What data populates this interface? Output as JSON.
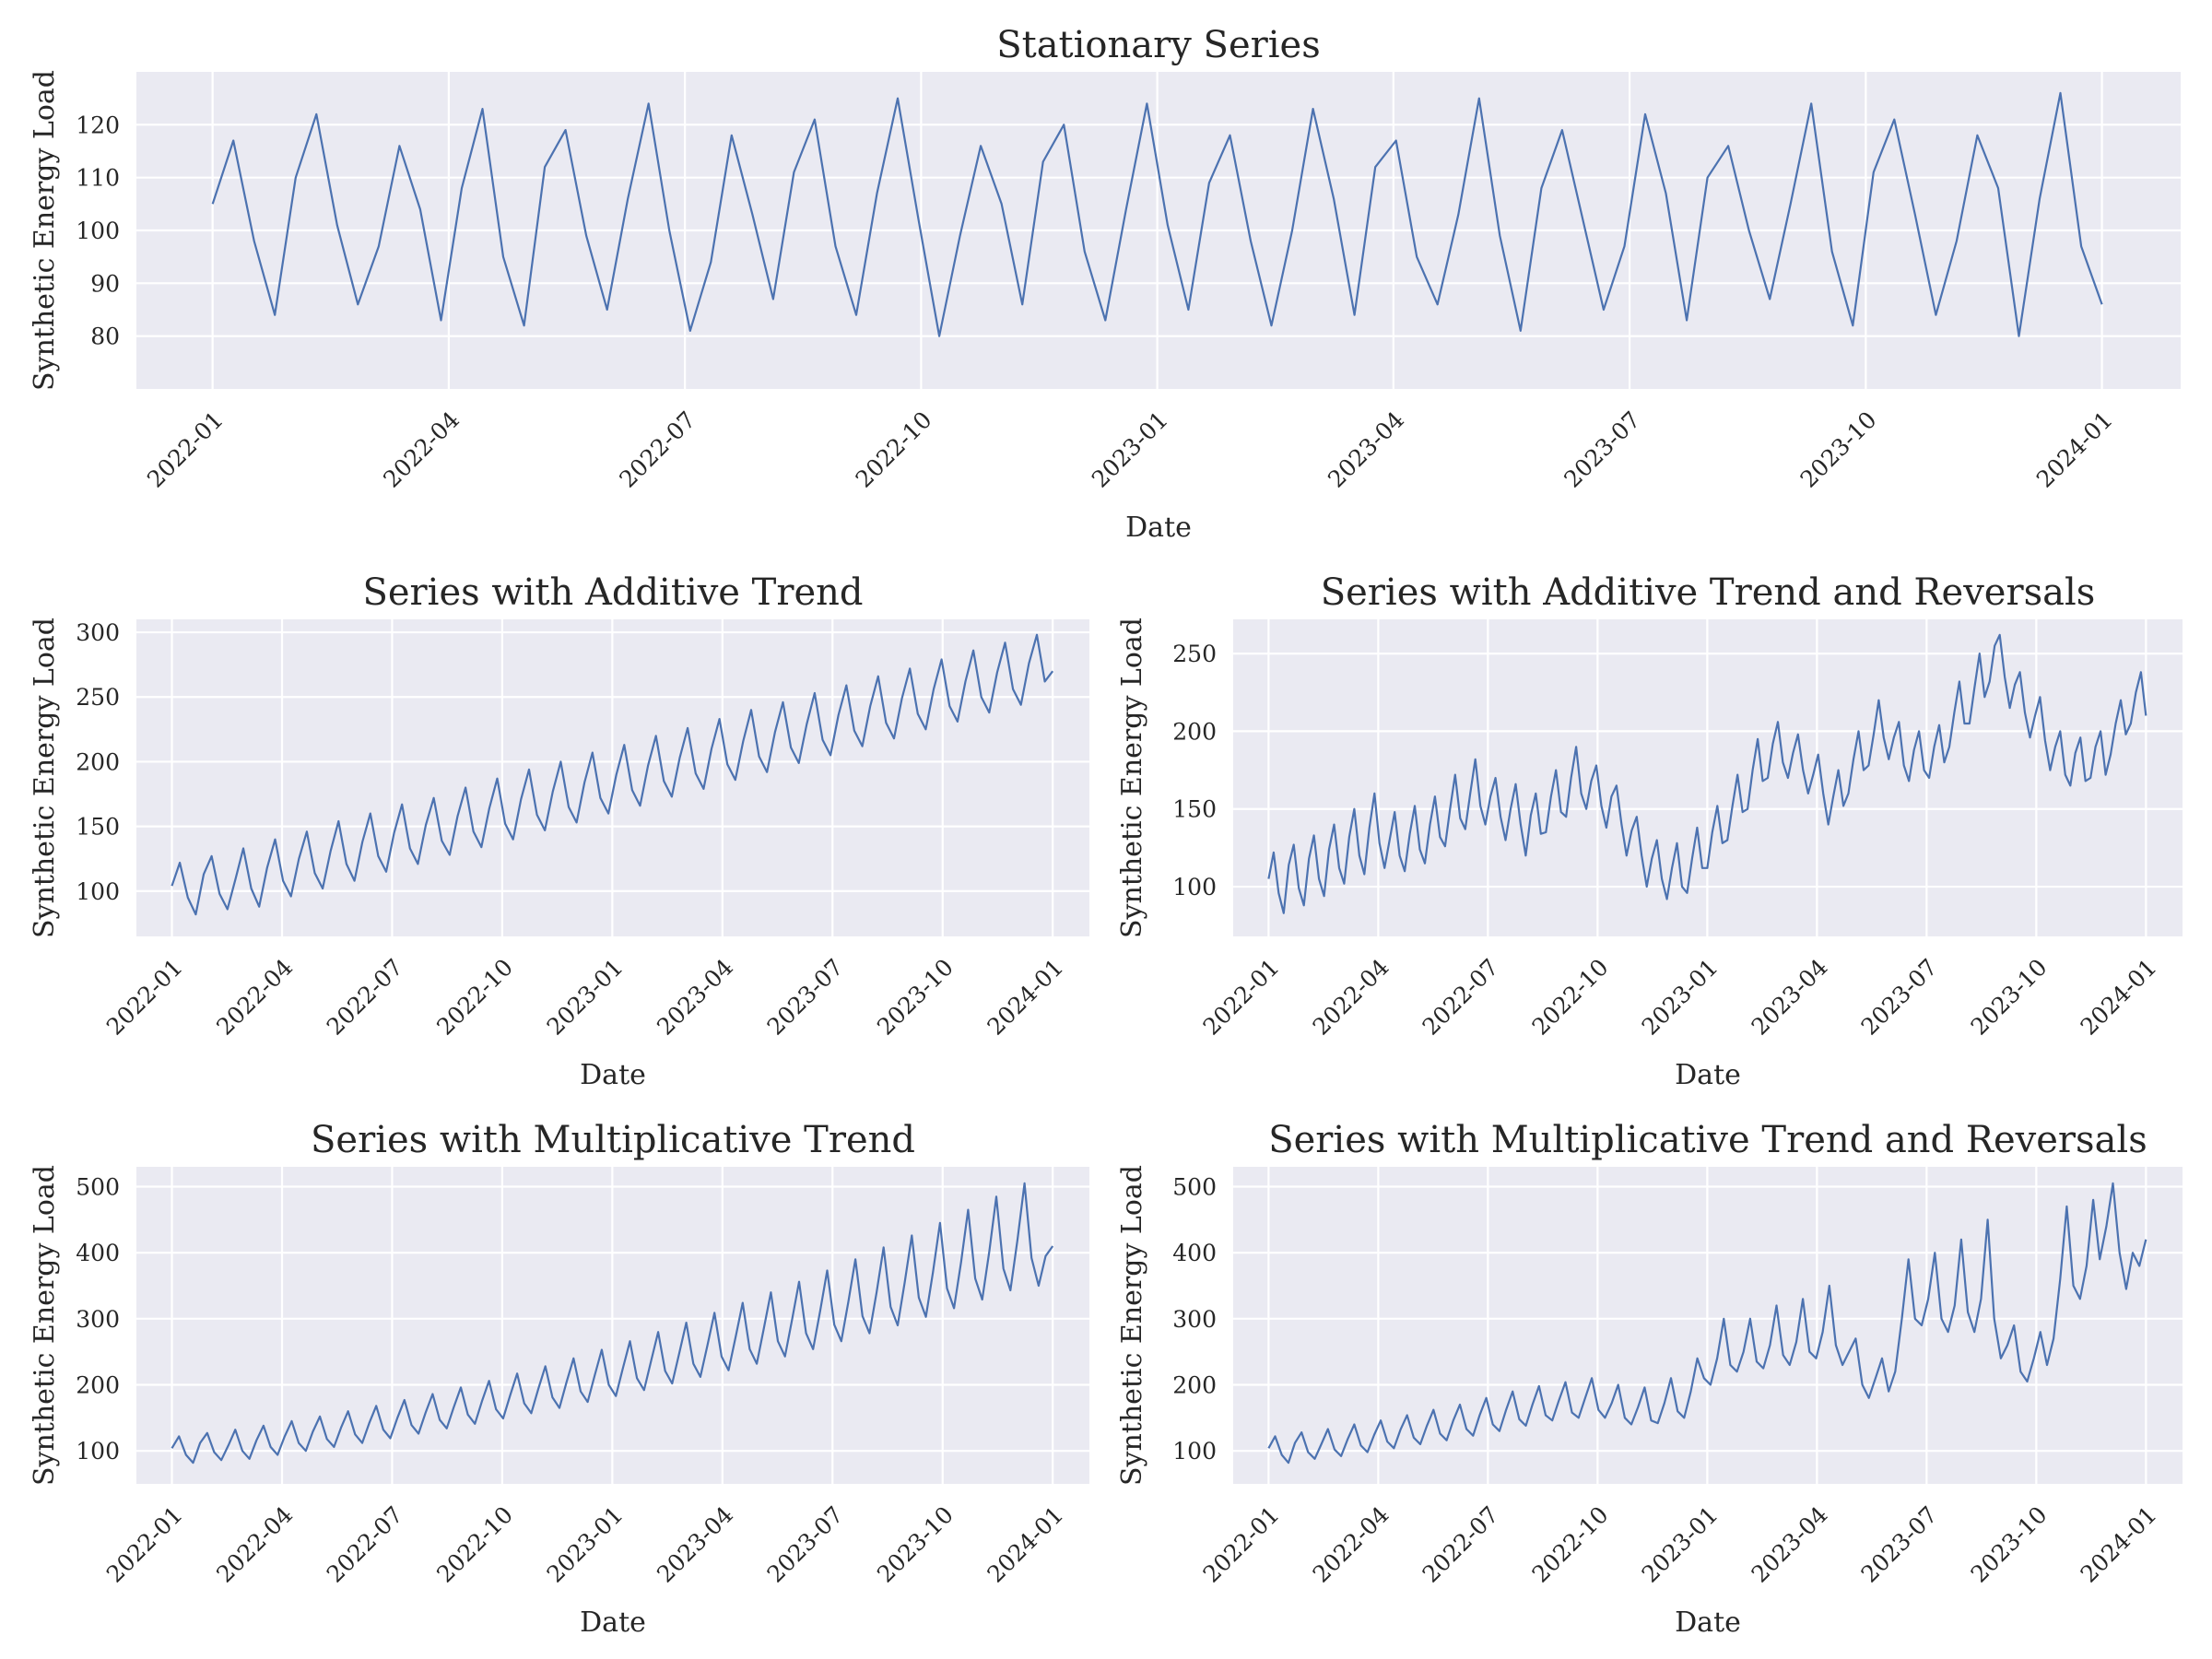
{
  "figure": {
    "x_axis_label": "Date",
    "y_axis_label": "Synthetic Energy Load"
  },
  "chart_data": [
    {
      "type": "line",
      "title": "Stationary Series",
      "xlabel": "Date",
      "ylabel": "Synthetic Energy Load",
      "xlim": [
        "2021-12-02",
        "2024-02-01"
      ],
      "ylim": [
        70,
        130
      ],
      "xticks": [
        "2022-01",
        "2022-04",
        "2022-07",
        "2022-10",
        "2023-01",
        "2023-04",
        "2023-07",
        "2023-10",
        "2024-01"
      ],
      "yticks": [
        80,
        90,
        100,
        110,
        120
      ],
      "grid": true,
      "series": [
        {
          "color": "#4c72b0",
          "x_start": "2022-01-01",
          "x_end": "2024-01-01",
          "y": [
            105,
            117,
            98,
            84,
            110,
            122,
            101,
            86,
            97,
            116,
            104,
            83,
            108,
            123,
            95,
            82,
            112,
            119,
            99,
            85,
            106,
            124,
            100,
            81,
            94,
            118,
            103,
            87,
            111,
            121,
            97,
            84,
            107,
            125,
            102,
            80,
            99,
            116,
            105,
            86,
            113,
            120,
            96,
            83,
            104,
            124,
            101,
            85,
            109,
            118,
            98,
            82,
            100,
            123,
            106,
            84,
            112,
            117,
            95,
            86,
            103,
            125,
            99,
            81,
            108,
            119,
            102,
            85,
            97,
            122,
            107,
            83,
            110,
            116,
            100,
            87,
            105,
            124,
            96,
            82,
            111,
            121,
            103,
            84,
            98,
            118,
            108,
            80,
            106,
            126,
            97,
            86
          ]
        }
      ]
    },
    {
      "type": "line",
      "title": "Series with Additive Trend",
      "xlabel": "Date",
      "ylabel": "Synthetic Energy Load",
      "xlim": [
        "2021-12-02",
        "2024-02-01"
      ],
      "ylim": [
        65,
        310
      ],
      "xticks": [
        "2022-01",
        "2022-04",
        "2022-07",
        "2022-10",
        "2023-01",
        "2023-04",
        "2023-07",
        "2023-10",
        "2024-01"
      ],
      "yticks": [
        100,
        150,
        200,
        250,
        300
      ],
      "grid": true,
      "series": [
        {
          "color": "#4c72b0",
          "x_start": "2022-01-01",
          "x_end": "2024-01-01",
          "y": [
            104,
            122,
            95,
            82,
            113,
            127,
            98,
            86,
            109,
            133,
            102,
            88,
            118,
            140,
            108,
            96,
            125,
            146,
            114,
            102,
            131,
            154,
            121,
            108,
            138,
            160,
            127,
            115,
            145,
            167,
            133,
            121,
            151,
            172,
            139,
            128,
            158,
            180,
            146,
            134,
            164,
            187,
            152,
            140,
            171,
            194,
            159,
            147,
            177,
            200,
            165,
            153,
            184,
            207,
            172,
            160,
            190,
            213,
            178,
            166,
            197,
            220,
            185,
            173,
            203,
            226,
            191,
            179,
            210,
            233,
            198,
            186,
            216,
            240,
            204,
            192,
            223,
            246,
            211,
            199,
            229,
            253,
            217,
            205,
            236,
            259,
            224,
            212,
            243,
            266,
            230,
            218,
            249,
            272,
            237,
            225,
            256,
            279,
            243,
            231,
            262,
            286,
            250,
            238,
            269,
            292,
            256,
            244,
            276,
            298,
            262,
            270
          ]
        }
      ]
    },
    {
      "type": "line",
      "title": "Series with Additive Trend and Reversals",
      "xlabel": "Date",
      "ylabel": "Synthetic Energy Load",
      "xlim": [
        "2021-12-02",
        "2024-02-01"
      ],
      "ylim": [
        68,
        272
      ],
      "xticks": [
        "2022-01",
        "2022-04",
        "2022-07",
        "2022-10",
        "2023-01",
        "2023-04",
        "2023-07",
        "2023-10",
        "2024-01"
      ],
      "yticks": [
        100,
        150,
        200,
        250
      ],
      "grid": true,
      "series": [
        {
          "color": "#4c72b0",
          "x_start": "2022-01-01",
          "x_end": "2024-01-01",
          "y": [
            105,
            122,
            96,
            83,
            114,
            127,
            99,
            88,
            118,
            133,
            105,
            94,
            124,
            140,
            112,
            102,
            132,
            150,
            120,
            108,
            138,
            160,
            128,
            112,
            130,
            148,
            120,
            110,
            134,
            152,
            124,
            115,
            140,
            158,
            132,
            126,
            150,
            172,
            144,
            137,
            160,
            182,
            152,
            140,
            158,
            170,
            145,
            130,
            150,
            166,
            140,
            120,
            146,
            160,
            134,
            135,
            158,
            175,
            148,
            145,
            170,
            190,
            160,
            150,
            168,
            178,
            152,
            138,
            158,
            165,
            140,
            120,
            136,
            145,
            120,
            100,
            118,
            130,
            105,
            92,
            112,
            128,
            100,
            96,
            118,
            138,
            112,
            112,
            135,
            152,
            128,
            130,
            152,
            172,
            148,
            150,
            175,
            195,
            168,
            170,
            192,
            206,
            180,
            170,
            186,
            198,
            175,
            160,
            172,
            185,
            160,
            140,
            158,
            175,
            152,
            160,
            182,
            200,
            175,
            178,
            198,
            220,
            196,
            182,
            196,
            206,
            178,
            168,
            188,
            200,
            175,
            170,
            190,
            204,
            180,
            190,
            212,
            232,
            205,
            205,
            228,
            250,
            222,
            232,
            255,
            262,
            235,
            215,
            230,
            238,
            212,
            196,
            210,
            222,
            194,
            175,
            190,
            200,
            172,
            165,
            186,
            196,
            168,
            170,
            190,
            200,
            172,
            185,
            205,
            220,
            198,
            205,
            225,
            238,
            210
          ]
        }
      ]
    },
    {
      "type": "line",
      "title": "Series with Multiplicative Trend",
      "xlabel": "Date",
      "ylabel": "Synthetic Energy Load",
      "xlim": [
        "2021-12-02",
        "2024-02-01"
      ],
      "ylim": [
        50,
        530
      ],
      "xticks": [
        "2022-01",
        "2022-04",
        "2022-07",
        "2022-10",
        "2023-01",
        "2023-04",
        "2023-07",
        "2023-10",
        "2024-01"
      ],
      "yticks": [
        100,
        200,
        300,
        400,
        500
      ],
      "grid": true,
      "series": [
        {
          "color": "#4c72b0",
          "x_start": "2022-01-01",
          "x_end": "2024-01-01",
          "y": [
            104,
            122,
            94,
            82,
            112,
            127,
            98,
            86,
            108,
            132,
            100,
            88,
            116,
            138,
            106,
            94,
            122,
            145,
            112,
            100,
            129,
            152,
            118,
            106,
            135,
            160,
            125,
            112,
            142,
            168,
            132,
            119,
            150,
            177,
            139,
            126,
            158,
            186,
            147,
            134,
            166,
            196,
            155,
            141,
            175,
            206,
            163,
            149,
            184,
            217,
            172,
            157,
            194,
            228,
            181,
            165,
            204,
            240,
            190,
            174,
            214,
            253,
            200,
            183,
            225,
            266,
            210,
            192,
            236,
            280,
            221,
            202,
            248,
            294,
            232,
            212,
            260,
            309,
            243,
            222,
            272,
            324,
            254,
            232,
            285,
            340,
            266,
            243,
            298,
            356,
            278,
            254,
            312,
            373,
            291,
            266,
            326,
            390,
            304,
            278,
            340,
            408,
            318,
            290,
            355,
            426,
            332,
            303,
            370,
            445,
            346,
            316,
            386,
            465,
            361,
            329,
            402,
            485,
            376,
            343,
            420,
            505,
            392,
            350,
            395,
            410
          ]
        }
      ]
    },
    {
      "type": "line",
      "title": "Series with Multiplicative Trend and Reversals",
      "xlabel": "Date",
      "ylabel": "Synthetic Energy Load",
      "xlim": [
        "2021-12-02",
        "2024-02-01"
      ],
      "ylim": [
        50,
        530
      ],
      "xticks": [
        "2022-01",
        "2022-04",
        "2022-07",
        "2022-10",
        "2023-01",
        "2023-04",
        "2023-07",
        "2023-10",
        "2024-01"
      ],
      "yticks": [
        100,
        200,
        300,
        400,
        500
      ],
      "grid": true,
      "series": [
        {
          "color": "#4c72b0",
          "x_start": "2022-01-01",
          "x_end": "2024-01-01",
          "y": [
            104,
            122,
            94,
            82,
            112,
            128,
            98,
            88,
            110,
            133,
            102,
            92,
            118,
            140,
            108,
            98,
            124,
            146,
            114,
            104,
            132,
            154,
            120,
            110,
            138,
            162,
            126,
            116,
            146,
            170,
            133,
            123,
            154,
            180,
            140,
            130,
            162,
            190,
            148,
            138,
            170,
            198,
            154,
            146,
            176,
            204,
            158,
            150,
            180,
            210,
            162,
            150,
            172,
            200,
            150,
            140,
            166,
            196,
            146,
            142,
            172,
            210,
            160,
            150,
            190,
            240,
            210,
            200,
            240,
            300,
            230,
            220,
            250,
            300,
            235,
            225,
            260,
            320,
            245,
            230,
            265,
            330,
            250,
            240,
            280,
            350,
            260,
            230,
            250,
            270,
            200,
            180,
            210,
            240,
            190,
            220,
            300,
            390,
            300,
            290,
            330,
            400,
            300,
            280,
            320,
            420,
            310,
            280,
            330,
            450,
            300,
            240,
            260,
            290,
            220,
            205,
            240,
            280,
            230,
            270,
            360,
            470,
            350,
            330,
            380,
            480,
            390,
            440,
            505,
            400,
            345,
            400,
            380,
            420
          ]
        }
      ]
    }
  ]
}
